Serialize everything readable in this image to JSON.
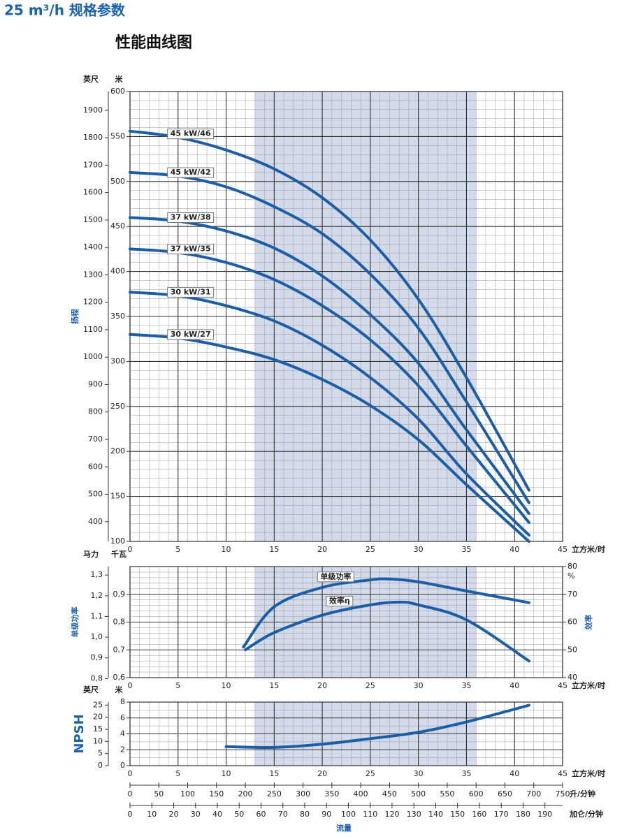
{
  "header": "25 m³/h 规格参数",
  "chart_data": [
    {
      "type": "line",
      "title": "性能曲线图",
      "y_label": "扬程",
      "y_unit": "米",
      "y2_unit": "英尺",
      "x_unit": "立方米/时",
      "x": [
        0,
        5,
        10,
        15,
        20,
        25,
        30,
        35,
        41.5
      ],
      "xlim": [
        0,
        45
      ],
      "xticks": [
        0,
        5,
        10,
        15,
        20,
        25,
        30,
        35,
        40,
        45
      ],
      "ylim": [
        100,
        600
      ],
      "yticks": [
        100,
        150,
        200,
        250,
        300,
        350,
        400,
        450,
        500,
        550,
        600
      ],
      "y2lim": [
        328.1,
        1968.5
      ],
      "y2ticks": [
        400,
        500,
        600,
        700,
        800,
        900,
        1000,
        1100,
        1200,
        1300,
        1400,
        1500,
        1600,
        1700,
        1800,
        1900
      ],
      "highlight_range": [
        13,
        36
      ],
      "highlight_color": "#d3dbea",
      "grid": true,
      "series": [
        {
          "name": "45 kW/46",
          "color": "#1c5ea6",
          "values": [
            556,
            549,
            535,
            514,
            482,
            435,
            369,
            282,
            157
          ]
        },
        {
          "name": "45 kW/42",
          "color": "#1c5ea6",
          "values": [
            510,
            506,
            494,
            472,
            442,
            397,
            337,
            255,
            143
          ]
        },
        {
          "name": "37 kW/38",
          "color": "#1c5ea6",
          "values": [
            460,
            456,
            445,
            426,
            395,
            352,
            298,
            224,
            131
          ]
        },
        {
          "name": "37 kW/35",
          "color": "#1c5ea6",
          "values": [
            425,
            421,
            410,
            391,
            362,
            324,
            273,
            206,
            121
          ]
        },
        {
          "name": "30 kW/31",
          "color": "#1c5ea6",
          "values": [
            377,
            373,
            362,
            345,
            318,
            282,
            236,
            175,
            107
          ]
        },
        {
          "name": "30 kW/27",
          "color": "#1c5ea6",
          "values": [
            330,
            326,
            316,
            302,
            280,
            251,
            213,
            163,
            100
          ]
        }
      ]
    },
    {
      "type": "line",
      "y_label": "单级功率",
      "y_unit": "千瓦",
      "y2_label": "效率",
      "y2_unit": "%",
      "y3_unit": "马力",
      "x_unit": "立方米/时",
      "xlim": [
        0,
        45
      ],
      "xticks": [
        0,
        5,
        10,
        15,
        20,
        25,
        30,
        35,
        40,
        45
      ],
      "ylim": [
        0.6,
        1.0
      ],
      "yticks": [
        {
          "value": 0.6,
          "label": "0,6"
        },
        {
          "value": 0.7,
          "label": "0,7"
        },
        {
          "value": 0.8,
          "label": "0,8"
        },
        {
          "value": 0.9,
          "label": "0,9"
        }
      ],
      "y2lim": [
        40,
        80
      ],
      "y2ticks": [
        40,
        50,
        60,
        70,
        80
      ],
      "y3lim": [
        0.8046,
        1.341
      ],
      "y3ticks": [
        {
          "value": 0.8,
          "label": "0,8"
        },
        {
          "value": 0.9,
          "label": "0,9"
        },
        {
          "value": 1.0,
          "label": "1,0"
        },
        {
          "value": 1.1,
          "label": "1,1"
        },
        {
          "value": 1.2,
          "label": "1,2"
        },
        {
          "value": 1.3,
          "label": "1,3"
        }
      ],
      "highlight_range": [
        13,
        36
      ],
      "highlight_color": "#d3dbea",
      "grid": true,
      "series": [
        {
          "name": "单级功率",
          "color": "#1c5ea6",
          "x": [
            11.8,
            15,
            20,
            25,
            27,
            30,
            35,
            41.5
          ],
          "values": [
            0.71,
            0.855,
            0.925,
            0.952,
            0.955,
            0.945,
            0.912,
            0.87
          ]
        },
        {
          "name": "效率η",
          "color": "#1c5ea6",
          "axis": "y2",
          "x": [
            12,
            15,
            20,
            25,
            28,
            30,
            35,
            41.5
          ],
          "values": [
            50,
            56.2,
            62.5,
            66.2,
            67.2,
            66.2,
            60.8,
            46
          ]
        }
      ]
    },
    {
      "type": "line",
      "y_label": "NPSH",
      "y_unit": "米",
      "y2_unit": "英尺",
      "x_unit": "立方米/时",
      "x_label": "流量",
      "x": [
        10,
        15,
        20,
        25,
        30,
        35,
        41.5
      ],
      "xlim": [
        0,
        45
      ],
      "xticks": [
        0,
        5,
        10,
        15,
        20,
        25,
        30,
        35,
        40,
        45
      ],
      "ylim": [
        0,
        8
      ],
      "yticks": [
        0,
        2,
        4,
        6,
        8
      ],
      "y2lim": [
        0,
        26.25
      ],
      "y2ticks": [
        0,
        5,
        10,
        15,
        20,
        25
      ],
      "highlight_range": [
        13,
        36
      ],
      "highlight_color": "#d3dbea",
      "grid": true,
      "series": [
        {
          "name": "NPSH",
          "color": "#1c5ea6",
          "values": [
            2.4,
            2.3,
            2.7,
            3.4,
            4.2,
            5.5,
            7.6
          ]
        }
      ],
      "x2lim": [
        0,
        750
      ],
      "x2ticks": [
        0,
        50,
        100,
        150,
        200,
        250,
        300,
        350,
        400,
        450,
        500,
        550,
        600,
        650,
        700,
        750
      ],
      "x2_unit": "升/分钟",
      "x3lim": [
        0,
        198.1
      ],
      "x3ticks": [
        0,
        10,
        20,
        30,
        40,
        50,
        60,
        70,
        80,
        90,
        100,
        110,
        120,
        130,
        140,
        150,
        160,
        170,
        180,
        190
      ],
      "x3_unit": "加仑/分钟"
    }
  ]
}
